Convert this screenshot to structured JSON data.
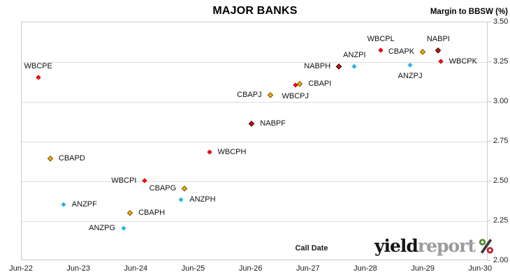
{
  "chart": {
    "title": "MAJOR BANKS",
    "y_axis_title": "Margin to BBSW (%)",
    "x_axis_title": "Call Date"
  },
  "logo": {
    "part1": "yield",
    "part2": "report",
    "percent_icon": "percent-badge",
    "colors": {
      "yield": "#161616",
      "report": "#9b9b9b",
      "percent_green": "#4f8a2c",
      "percent_red": "#c1202c",
      "percent_slash": "#3a3a3a"
    }
  },
  "chart_data": {
    "type": "scatter",
    "title": "MAJOR BANKS",
    "xlabel": "Call Date",
    "ylabel": "Margin to BBSW (%)",
    "ylim": [
      2.0,
      3.5
    ],
    "y_tick_step": 0.25,
    "y_tick_labels": [
      "3.50",
      "3.25",
      "3.00",
      "2.75",
      "2.50",
      "2.25",
      "2.00"
    ],
    "x_tick_labels": [
      "Jun-22",
      "Jun-23",
      "Jun-24",
      "Jun-25",
      "Jun-26",
      "Jun-27",
      "Jun-28",
      "Jun-29",
      "Jun-30"
    ],
    "x_domain_years_after_jun22": [
      0,
      8.13
    ],
    "grid": "horizontal",
    "legend": "none",
    "series_colors": {
      "WBC": {
        "fill": "#ff1212",
        "border": "#c40000"
      },
      "CBA": {
        "fill": "#f9ac0e",
        "border": "#6f5400"
      },
      "ANZ": {
        "fill": "#2db3e8",
        "border": "#2db3e8"
      },
      "NAB": {
        "fill": "#dd1111",
        "border": "#200000"
      }
    },
    "points": [
      {
        "label": "WBCPE",
        "bank": "WBC",
        "call_date": "Sep-22",
        "x_years": 0.3,
        "margin": 3.15,
        "label_pos": "above"
      },
      {
        "label": "CBAPD",
        "bank": "CBA",
        "call_date": "Dec-22",
        "x_years": 0.51,
        "margin": 2.64,
        "label_pos": "right"
      },
      {
        "label": "ANZPF",
        "bank": "ANZ",
        "call_date": "Mar-23",
        "x_years": 0.74,
        "margin": 2.35,
        "label_pos": "right"
      },
      {
        "label": "ANZPG",
        "bank": "ANZ",
        "call_date": "Mar-24",
        "x_years": 1.79,
        "margin": 2.2,
        "label_pos": "left"
      },
      {
        "label": "CBAPH",
        "bank": "CBA",
        "call_date": "Apr-24",
        "x_years": 1.9,
        "margin": 2.3,
        "label_pos": "right"
      },
      {
        "label": "WBCPI",
        "bank": "WBC",
        "call_date": "Jul-24",
        "x_years": 2.16,
        "margin": 2.5,
        "label_pos": "left"
      },
      {
        "label": "ANZPH",
        "bank": "ANZ",
        "call_date": "Mar-25",
        "x_years": 2.79,
        "margin": 2.38,
        "label_pos": "right"
      },
      {
        "label": "CBAPG",
        "bank": "CBA",
        "call_date": "Apr-25",
        "x_years": 2.85,
        "margin": 2.45,
        "label_pos": "left"
      },
      {
        "label": "WBCPH",
        "bank": "WBC",
        "call_date": "Sep-25",
        "x_years": 3.28,
        "margin": 2.68,
        "label_pos": "right"
      },
      {
        "label": "NABPF",
        "bank": "NAB",
        "call_date": "Jun-26",
        "x_years": 4.02,
        "margin": 2.86,
        "label_pos": "right"
      },
      {
        "label": "CBAPJ",
        "bank": "CBA",
        "call_date": "Oct-26",
        "x_years": 4.34,
        "margin": 3.04,
        "label_pos": "left"
      },
      {
        "label": "WBCPJ",
        "bank": "WBC",
        "call_date": "Mar-27",
        "x_years": 4.78,
        "margin": 3.1,
        "label_pos": "below"
      },
      {
        "label": "CBAPI",
        "bank": "CBA",
        "call_date": "Apr-27",
        "x_years": 4.86,
        "margin": 3.11,
        "label_pos": "right"
      },
      {
        "label": "NABPH",
        "bank": "NAB",
        "call_date": "Dec-27",
        "x_years": 5.54,
        "margin": 3.22,
        "label_pos": "left"
      },
      {
        "label": "ANZPI",
        "bank": "ANZ",
        "call_date": "Mar-28",
        "x_years": 5.81,
        "margin": 3.22,
        "label_pos": "above"
      },
      {
        "label": "WBCPL",
        "bank": "WBC",
        "call_date": "Sep-28",
        "x_years": 6.27,
        "margin": 3.32,
        "label_pos": "above"
      },
      {
        "label": "ANZPJ",
        "bank": "ANZ",
        "call_date": "Mar-29",
        "x_years": 6.78,
        "margin": 3.23,
        "label_pos": "below"
      },
      {
        "label": "CBAPK",
        "bank": "CBA",
        "call_date": "Jun-29",
        "x_years": 7.0,
        "margin": 3.31,
        "label_pos": "left"
      },
      {
        "label": "NABPI",
        "bank": "NAB",
        "call_date": "Sep-29",
        "x_years": 7.27,
        "margin": 3.32,
        "label_pos": "above"
      },
      {
        "label": "WBCPK",
        "bank": "WBC",
        "call_date": "Oct-29",
        "x_years": 7.31,
        "margin": 3.25,
        "label_pos": "right"
      }
    ]
  }
}
